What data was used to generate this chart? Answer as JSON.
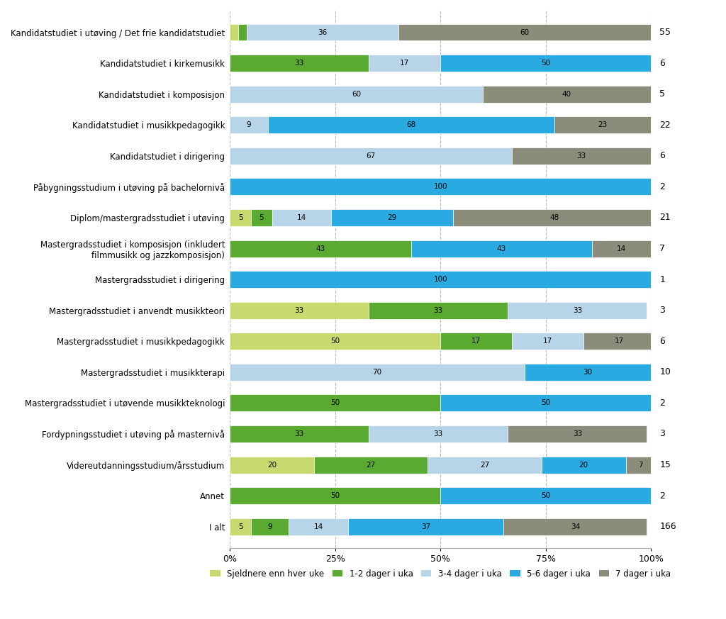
{
  "categories": [
    "Kandidatstudiet i utøving / Det frie kandidatstudiet",
    "Kandidatstudiet i kirkemusikk",
    "Kandidatstudiet i komposisjon",
    "Kandidatstudiet i musikkpedagogikk",
    "Kandidatstudiet i dirigering",
    "Påbygningsstudium i utøving på bachelornivå",
    "Diplom/mastergradsstudiet i utøving",
    "Mastergradsstudiet i komposisjon (inkludert\nfilmmusikk og jazzkomposisjon)",
    "Mastergradsstudiet i dirigering",
    "Mastergradsstudiet i anvendt musikkteori",
    "Mastergradsstudiet i musikkpedagogikk",
    "Mastergradsstudiet i musikkterapi",
    "Mastergradsstudiet i utøvende musikkteknologi",
    "Fordypningsstudiet i utøving på masternivå",
    "Videreutdanningsstudium/årsstudium",
    "Annet",
    "I alt"
  ],
  "n_values": [
    55,
    6,
    5,
    22,
    6,
    2,
    21,
    7,
    1,
    3,
    6,
    10,
    2,
    3,
    15,
    2,
    166
  ],
  "rows": [
    [
      2,
      2,
      36,
      0,
      60
    ],
    [
      0,
      33,
      17,
      50,
      0
    ],
    [
      0,
      0,
      60,
      0,
      40
    ],
    [
      0,
      0,
      9,
      68,
      23
    ],
    [
      0,
      0,
      67,
      0,
      33
    ],
    [
      0,
      0,
      0,
      100,
      0
    ],
    [
      5,
      5,
      14,
      29,
      48
    ],
    [
      0,
      43,
      0,
      43,
      14
    ],
    [
      0,
      0,
      0,
      100,
      0
    ],
    [
      33,
      33,
      33,
      0,
      0
    ],
    [
      50,
      17,
      17,
      0,
      17
    ],
    [
      0,
      0,
      70,
      30,
      0
    ],
    [
      0,
      50,
      0,
      50,
      0
    ],
    [
      0,
      33,
      33,
      0,
      33
    ],
    [
      20,
      27,
      27,
      20,
      7
    ],
    [
      0,
      50,
      0,
      50,
      0
    ],
    [
      5,
      9,
      14,
      37,
      34
    ]
  ],
  "seg_colors": [
    "#c8d96f",
    "#5aaa32",
    "#b8d4e8",
    "#29abe2",
    "#8c8c7a"
  ],
  "legend_labels": [
    "Sjeldnere enn hver uke",
    "1-2 dager i uka",
    "3-4 dager i uka",
    "5-6 dager i uka",
    "7 dager i uka"
  ],
  "bar_height": 0.55,
  "background_color": "#ffffff",
  "grid_color": "#bbbbbb",
  "label_min_val": 5,
  "figsize": [
    10.24,
    8.73
  ],
  "dpi": 100
}
